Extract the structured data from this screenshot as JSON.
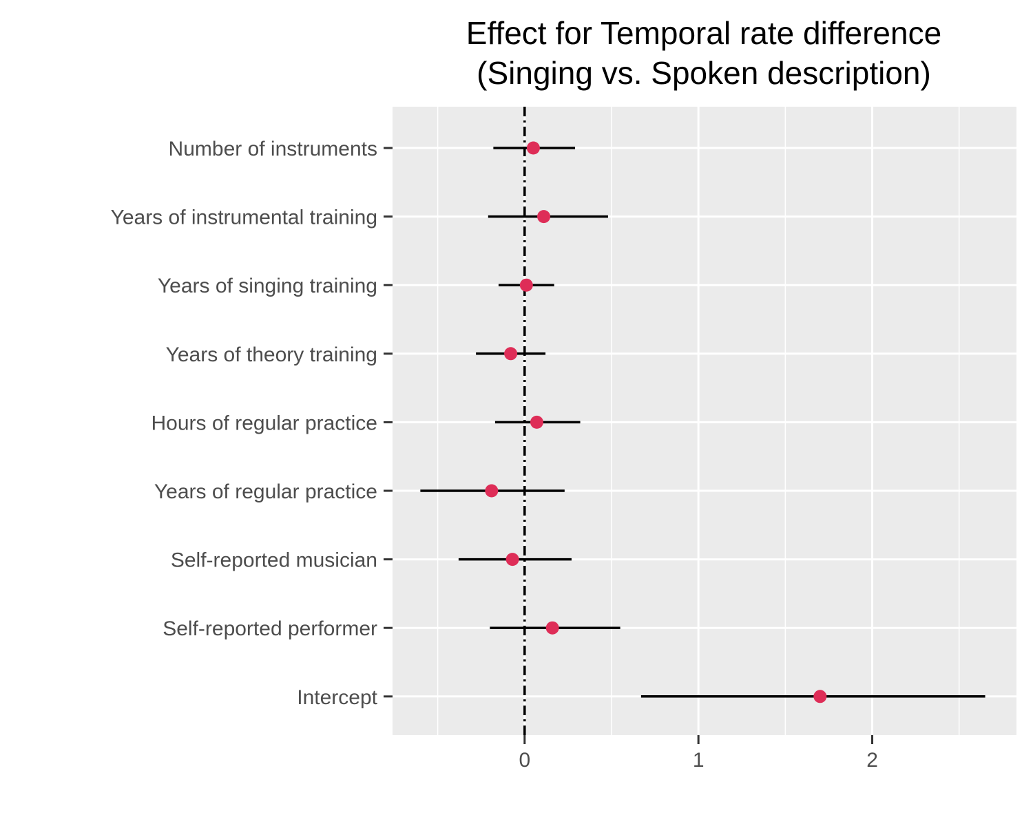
{
  "chart_data": {
    "type": "forest",
    "title_lines": [
      "Effect for Temporal rate difference",
      "(Singing vs. Spoken description)"
    ],
    "categories": [
      "Number of instruments",
      "Years of instrumental training",
      "Years of singing training",
      "Years of theory training",
      "Hours of regular practice",
      "Years of regular practice",
      "Self-reported musician",
      "Self-reported performer",
      "Intercept"
    ],
    "estimates": [
      0.05,
      0.11,
      0.01,
      -0.08,
      0.07,
      -0.19,
      -0.07,
      0.16,
      1.7
    ],
    "lower": [
      -0.18,
      -0.21,
      -0.15,
      -0.28,
      -0.17,
      -0.6,
      -0.38,
      -0.2,
      0.67
    ],
    "upper": [
      0.29,
      0.48,
      0.17,
      0.12,
      0.32,
      0.23,
      0.27,
      0.55,
      2.65
    ],
    "xlim": [
      -0.76,
      2.83
    ],
    "x_ticks": [
      0,
      1,
      2
    ],
    "x_tick_labels": [
      "0",
      "1",
      "2"
    ],
    "reference_line": 0,
    "xlabel": "",
    "ylabel": "",
    "grid": true,
    "point_color": "#de2d57",
    "interval_color": "#000000",
    "panel_color": "#ebebeb",
    "gridline_color": "#ffffff"
  }
}
